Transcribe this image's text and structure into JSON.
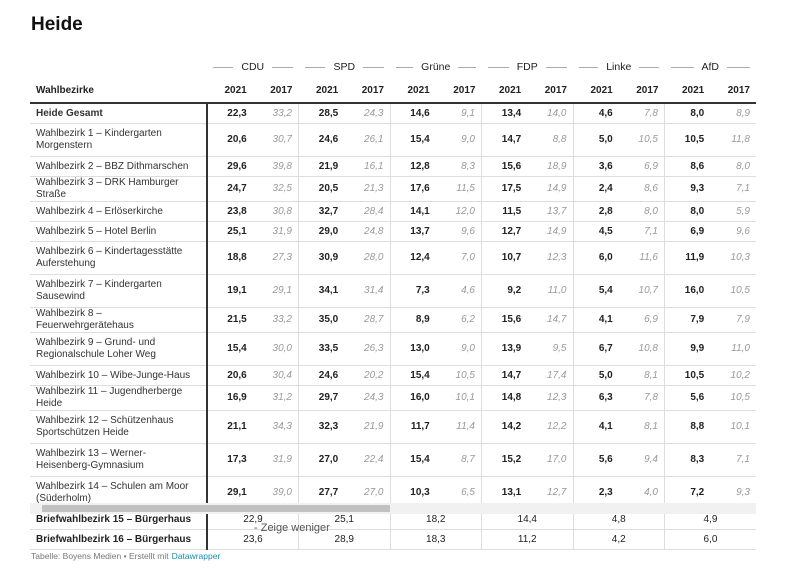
{
  "title": "Heide",
  "table": {
    "header": {
      "district": "Wahlbezirke",
      "parties": [
        "CDU",
        "SPD",
        "Grüne",
        "FDP",
        "Linke",
        "AfD"
      ],
      "years": [
        "2021",
        "2017"
      ]
    },
    "rows": [
      {
        "name": "Heide Gesamt",
        "values": [
          "22,3",
          "33,2",
          "28,5",
          "24,3",
          "14,6",
          "9,1",
          "13,4",
          "14,0",
          "4,6",
          "7,8",
          "8,0",
          "8,9"
        ]
      },
      {
        "name": "Wahlbezirk 1 – Kindergarten Morgenstern",
        "values": [
          "20,6",
          "30,7",
          "24,6",
          "26,1",
          "15,4",
          "9,0",
          "14,7",
          "8,8",
          "5,0",
          "10,5",
          "10,5",
          "11,8"
        ]
      },
      {
        "name": "Wahlbezirk 2 – BBZ Dithmarschen",
        "values": [
          "29,6",
          "39,8",
          "21,9",
          "16,1",
          "12,8",
          "8,3",
          "15,6",
          "18,9",
          "3,6",
          "6,9",
          "8,6",
          "8,0"
        ]
      },
      {
        "name": "Wahlbezirk 3 – DRK Hamburger Straße",
        "values": [
          "24,7",
          "32,5",
          "20,5",
          "21,3",
          "17,6",
          "11,5",
          "17,5",
          "14,9",
          "2,4",
          "8,6",
          "9,3",
          "7,1"
        ]
      },
      {
        "name": "Wahlbezirk 4 – Erlöserkirche",
        "values": [
          "23,8",
          "30,8",
          "32,7",
          "28,4",
          "14,1",
          "12,0",
          "11,5",
          "13,7",
          "2,8",
          "8,0",
          "8,0",
          "5,9"
        ]
      },
      {
        "name": "Wahlbezirk 5 – Hotel Berlin",
        "values": [
          "25,1",
          "31,9",
          "29,0",
          "24,8",
          "13,7",
          "9,6",
          "12,7",
          "14,9",
          "4,5",
          "7,1",
          "6,9",
          "9,6"
        ]
      },
      {
        "name": "Wahlbezirk 6 – Kindertagesstätte Auferstehung",
        "values": [
          "18,8",
          "27,3",
          "30,9",
          "28,0",
          "12,4",
          "7,0",
          "10,7",
          "12,3",
          "6,0",
          "11,6",
          "11,9",
          "10,3"
        ]
      },
      {
        "name": "Wahlbezirk 7 – Kindergarten Sausewind",
        "values": [
          "19,1",
          "29,1",
          "34,1",
          "31,4",
          "7,3",
          "4,6",
          "9,2",
          "11,0",
          "5,4",
          "10,7",
          "16,0",
          "10,5"
        ]
      },
      {
        "name": "Wahlbezirk 8 – Feuerwehrgerätehaus",
        "values": [
          "21,5",
          "33,2",
          "35,0",
          "28,7",
          "8,9",
          "6,2",
          "15,6",
          "14,7",
          "4,1",
          "6,9",
          "7,9",
          "7,9"
        ]
      },
      {
        "name": "Wahlbezirk 9 – Grund- und Regionalschule Loher Weg",
        "values": [
          "15,4",
          "30,0",
          "33,5",
          "26,3",
          "13,0",
          "9,0",
          "13,9",
          "9,5",
          "6,7",
          "10,8",
          "9,9",
          "11,0"
        ]
      },
      {
        "name": "Wahlbezirk 10 – Wibe-Junge-Haus",
        "values": [
          "20,6",
          "30,4",
          "24,6",
          "20,2",
          "15,4",
          "10,5",
          "14,7",
          "17,4",
          "5,0",
          "8,1",
          "10,5",
          "10,2"
        ]
      },
      {
        "name": "Wahlbezirk 11 – Jugendherberge Heide",
        "values": [
          "16,9",
          "31,2",
          "29,7",
          "24,3",
          "16,0",
          "10,1",
          "14,8",
          "12,3",
          "6,3",
          "7,8",
          "5,6",
          "10,5"
        ]
      },
      {
        "name": "Wahlbezirk 12 – Schützenhaus Sportschützen Heide",
        "values": [
          "21,1",
          "34,3",
          "32,3",
          "21,9",
          "11,7",
          "11,4",
          "14,2",
          "12,2",
          "4,1",
          "8,1",
          "8,8",
          "10,1"
        ]
      },
      {
        "name": "Wahlbezirk 13 – Werner-Heisenberg-Gymnasium",
        "values": [
          "17,3",
          "31,9",
          "27,0",
          "22,4",
          "15,4",
          "8,7",
          "15,2",
          "17,0",
          "5,6",
          "9,4",
          "8,3",
          "7,1"
        ]
      },
      {
        "name": "Wahlbezirk 14 – Schulen am Moor (Süderholm)",
        "values": [
          "29,1",
          "39,0",
          "27,7",
          "27,0",
          "10,3",
          "6,5",
          "13,1",
          "12,7",
          "2,3",
          "4,0",
          "7,2",
          "9,3"
        ]
      }
    ],
    "postal_rows": [
      {
        "name": "Briefwahlbezirk 15 – Bürgerhaus",
        "values": [
          "22,9",
          "25,1",
          "18,2",
          "14,4",
          "4,8",
          "4,9"
        ]
      },
      {
        "name": "Briefwahlbezirk 16 – Bürgerhaus",
        "values": [
          "23,6",
          "28,9",
          "18,3",
          "11,2",
          "4,2",
          "6,0"
        ]
      }
    ]
  },
  "show_less": "- Zeige weniger",
  "footer": {
    "source": "Tabelle: Boyens Medien • Erstellt mit",
    "link": "Datawrapper"
  }
}
